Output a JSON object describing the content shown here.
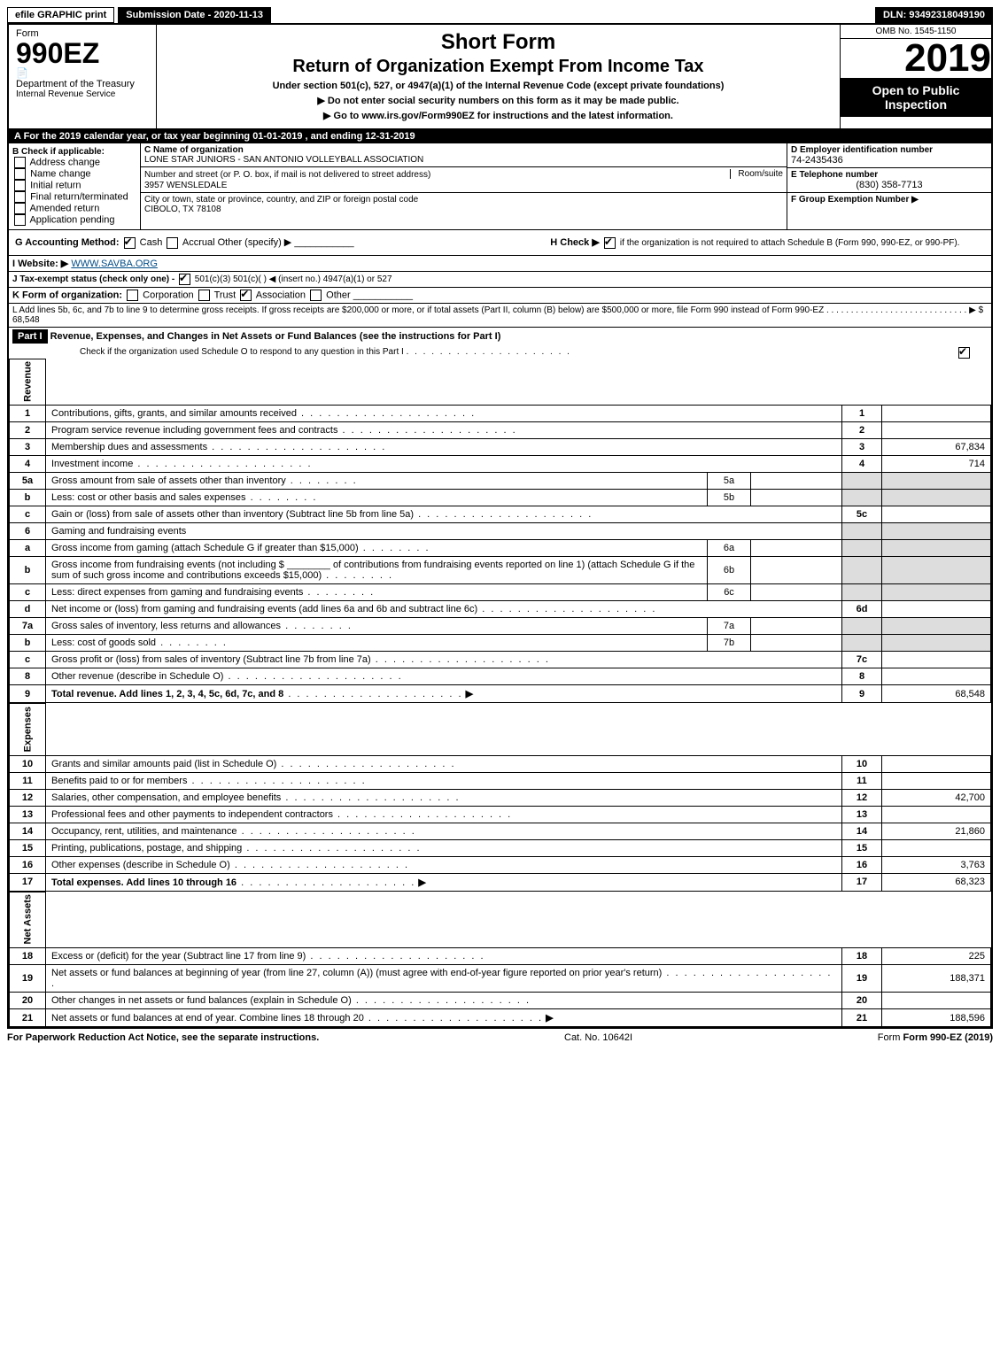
{
  "header": {
    "efile": "efile GRAPHIC print",
    "submission_label": "Submission Date - 2020-11-13",
    "dln_label": "DLN: 93492318049190"
  },
  "title": {
    "form": "Form",
    "form_number": "990EZ",
    "short_form": "Short Form",
    "main": "Return of Organization Exempt From Income Tax",
    "under": "Under section 501(c), 527, or 4947(a)(1) of the Internal Revenue Code (except private foundations)",
    "ssn_warning": "▶ Do not enter social security numbers on this form as it may be made public.",
    "goto": "▶ Go to www.irs.gov/Form990EZ for instructions and the latest information.",
    "dept": "Department of the Treasury",
    "irs": "Internal Revenue Service",
    "omb": "OMB No. 1545-1150",
    "year": "2019",
    "open": "Open to Public Inspection"
  },
  "period": {
    "a_label": "A For the 2019 calendar year, or tax year beginning 01-01-2019 , and ending 12-31-2019"
  },
  "box_b": {
    "label": "B Check if applicable:",
    "opts": [
      "Address change",
      "Name change",
      "Initial return",
      "Final return/terminated",
      "Amended return",
      "Application pending"
    ]
  },
  "box_c": {
    "name_label": "C Name of organization",
    "name": "LONE STAR JUNIORS - SAN ANTONIO VOLLEYBALL ASSOCIATION",
    "addr_label": "Number and street (or P. O. box, if mail is not delivered to street address)",
    "room_label": "Room/suite",
    "addr": "3957 WENSLEDALE",
    "city_label": "City or town, state or province, country, and ZIP or foreign postal code",
    "city": "CIBOLO, TX  78108"
  },
  "box_d": {
    "label": "D Employer identification number",
    "value": "74-2435436"
  },
  "box_e": {
    "label": "E Telephone number",
    "value": "(830) 358-7713"
  },
  "box_f": {
    "label": "F Group Exemption Number ▶"
  },
  "box_g": {
    "label": "G Accounting Method:",
    "cash": "Cash",
    "accrual": "Accrual",
    "other": "Other (specify) ▶"
  },
  "box_h": {
    "label": "H  Check ▶",
    "text": "if the organization is not required to attach Schedule B (Form 990, 990-EZ, or 990-PF)."
  },
  "box_i": {
    "label": "I Website: ▶",
    "value": "WWW.SAVBA.ORG"
  },
  "box_j": {
    "label": "J Tax-exempt status (check only one) -",
    "opts": "501(c)(3)    501(c)(  ) ◀ (insert no.)    4947(a)(1) or    527"
  },
  "box_k": {
    "label": "K Form of organization:",
    "opts": [
      "Corporation",
      "Trust",
      "Association",
      "Other"
    ]
  },
  "box_l": {
    "text": "L Add lines 5b, 6c, and 7b to line 9 to determine gross receipts. If gross receipts are $200,000 or more, or if total assets (Part II, column (B) below) are $500,000 or more, file Form 990 instead of Form 990-EZ  .  .  .  .  .  .  .  .  .  .  .  .  .  .  .  .  .  .  .  .  .  .  .  .  .  .  .  .  .  ▶ $",
    "value": "68,548"
  },
  "part1": {
    "label": "Part I",
    "title": "Revenue, Expenses, and Changes in Net Assets or Fund Balances (see the instructions for Part I)",
    "check_o": "Check if the organization used Schedule O to respond to any question in this Part I"
  },
  "sections": {
    "revenue": "Revenue",
    "expenses": "Expenses",
    "net_assets": "Net Assets"
  },
  "lines": [
    {
      "n": "1",
      "desc": "Contributions, gifts, grants, and similar amounts received",
      "rn": "1",
      "rv": ""
    },
    {
      "n": "2",
      "desc": "Program service revenue including government fees and contracts",
      "rn": "2",
      "rv": ""
    },
    {
      "n": "3",
      "desc": "Membership dues and assessments",
      "rn": "3",
      "rv": "67,834"
    },
    {
      "n": "4",
      "desc": "Investment income",
      "rn": "4",
      "rv": "714"
    },
    {
      "n": "5a",
      "desc": "Gross amount from sale of assets other than inventory",
      "sn": "5a",
      "sv": ""
    },
    {
      "n": "b",
      "desc": "Less: cost or other basis and sales expenses",
      "sn": "5b",
      "sv": ""
    },
    {
      "n": "c",
      "desc": "Gain or (loss) from sale of assets other than inventory (Subtract line 5b from line 5a)",
      "rn": "5c",
      "rv": ""
    },
    {
      "n": "6",
      "desc": "Gaming and fundraising events"
    },
    {
      "n": "a",
      "desc": "Gross income from gaming (attach Schedule G if greater than $15,000)",
      "sn": "6a",
      "sv": ""
    },
    {
      "n": "b",
      "desc": "Gross income from fundraising events (not including $ ________ of contributions from fundraising events reported on line 1) (attach Schedule G if the sum of such gross income and contributions exceeds $15,000)",
      "sn": "6b",
      "sv": ""
    },
    {
      "n": "c",
      "desc": "Less: direct expenses from gaming and fundraising events",
      "sn": "6c",
      "sv": ""
    },
    {
      "n": "d",
      "desc": "Net income or (loss) from gaming and fundraising events (add lines 6a and 6b and subtract line 6c)",
      "rn": "6d",
      "rv": ""
    },
    {
      "n": "7a",
      "desc": "Gross sales of inventory, less returns and allowances",
      "sn": "7a",
      "sv": ""
    },
    {
      "n": "b",
      "desc": "Less: cost of goods sold",
      "sn": "7b",
      "sv": ""
    },
    {
      "n": "c",
      "desc": "Gross profit or (loss) from sales of inventory (Subtract line 7b from line 7a)",
      "rn": "7c",
      "rv": ""
    },
    {
      "n": "8",
      "desc": "Other revenue (describe in Schedule O)",
      "rn": "8",
      "rv": ""
    },
    {
      "n": "9",
      "desc": "Total revenue. Add lines 1, 2, 3, 4, 5c, 6d, 7c, and 8",
      "rn": "9",
      "rv": "68,548",
      "bold": true,
      "arrow": true
    }
  ],
  "expense_lines": [
    {
      "n": "10",
      "desc": "Grants and similar amounts paid (list in Schedule O)",
      "rn": "10",
      "rv": ""
    },
    {
      "n": "11",
      "desc": "Benefits paid to or for members",
      "rn": "11",
      "rv": ""
    },
    {
      "n": "12",
      "desc": "Salaries, other compensation, and employee benefits",
      "rn": "12",
      "rv": "42,700"
    },
    {
      "n": "13",
      "desc": "Professional fees and other payments to independent contractors",
      "rn": "13",
      "rv": ""
    },
    {
      "n": "14",
      "desc": "Occupancy, rent, utilities, and maintenance",
      "rn": "14",
      "rv": "21,860"
    },
    {
      "n": "15",
      "desc": "Printing, publications, postage, and shipping",
      "rn": "15",
      "rv": ""
    },
    {
      "n": "16",
      "desc": "Other expenses (describe in Schedule O)",
      "rn": "16",
      "rv": "3,763"
    },
    {
      "n": "17",
      "desc": "Total expenses. Add lines 10 through 16",
      "rn": "17",
      "rv": "68,323",
      "bold": true,
      "arrow": true
    }
  ],
  "net_lines": [
    {
      "n": "18",
      "desc": "Excess or (deficit) for the year (Subtract line 17 from line 9)",
      "rn": "18",
      "rv": "225"
    },
    {
      "n": "19",
      "desc": "Net assets or fund balances at beginning of year (from line 27, column (A)) (must agree with end-of-year figure reported on prior year's return)",
      "rn": "19",
      "rv": "188,371"
    },
    {
      "n": "20",
      "desc": "Other changes in net assets or fund balances (explain in Schedule O)",
      "rn": "20",
      "rv": ""
    },
    {
      "n": "21",
      "desc": "Net assets or fund balances at end of year. Combine lines 18 through 20",
      "rn": "21",
      "rv": "188,596",
      "arrow": true
    }
  ],
  "footer": {
    "paperwork": "For Paperwork Reduction Act Notice, see the separate instructions.",
    "cat": "Cat. No. 10642I",
    "form": "Form 990-EZ (2019)"
  },
  "colors": {
    "black": "#000000",
    "white": "#ffffff",
    "shaded": "#dddddd",
    "link": "#004b87"
  }
}
